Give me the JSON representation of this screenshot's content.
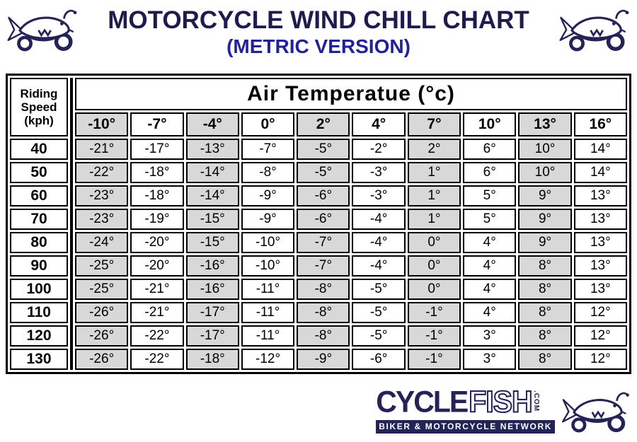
{
  "header": {
    "title": "MOTORCYCLE WIND CHILL CHART",
    "subtitle": "(METRIC VERSION)"
  },
  "table": {
    "corner_label": "Riding\nSpeed\n(kph)",
    "air_header": "Air Temperatue (°c)",
    "col_headers": [
      "-10°",
      "-7°",
      "-4°",
      "0°",
      "2°",
      "4°",
      "7°",
      "10°",
      "13°",
      "16°"
    ],
    "rows": [
      {
        "speed": "40",
        "values": [
          "-21°",
          "-17°",
          "-13°",
          "-7°",
          "-5°",
          "-2°",
          "2°",
          "6°",
          "10°",
          "14°"
        ]
      },
      {
        "speed": "50",
        "values": [
          "-22°",
          "-18°",
          "-14°",
          "-8°",
          "-5°",
          "-3°",
          "1°",
          "6°",
          "10°",
          "14°"
        ]
      },
      {
        "speed": "60",
        "values": [
          "-23°",
          "-18°",
          "-14°",
          "-9°",
          "-6°",
          "-3°",
          "1°",
          "5°",
          "9°",
          "13°"
        ]
      },
      {
        "speed": "70",
        "values": [
          "-23°",
          "-19°",
          "-15°",
          "-9°",
          "-6°",
          "-4°",
          "1°",
          "5°",
          "9°",
          "13°"
        ]
      },
      {
        "speed": "80",
        "values": [
          "-24°",
          "-20°",
          "-15°",
          "-10°",
          "-7°",
          "-4°",
          "0°",
          "4°",
          "9°",
          "13°"
        ]
      },
      {
        "speed": "90",
        "values": [
          "-25°",
          "-20°",
          "-16°",
          "-10°",
          "-7°",
          "-4°",
          "0°",
          "4°",
          "8°",
          "13°"
        ]
      },
      {
        "speed": "100",
        "values": [
          "-25°",
          "-21°",
          "-16°",
          "-11°",
          "-8°",
          "-5°",
          "0°",
          "4°",
          "8°",
          "13°"
        ]
      },
      {
        "speed": "110",
        "values": [
          "-26°",
          "-21°",
          "-17°",
          "-11°",
          "-8°",
          "-5°",
          "-1°",
          "4°",
          "8°",
          "12°"
        ]
      },
      {
        "speed": "120",
        "values": [
          "-26°",
          "-22°",
          "-17°",
          "-11°",
          "-8°",
          "-5°",
          "-1°",
          "3°",
          "8°",
          "12°"
        ]
      },
      {
        "speed": "130",
        "values": [
          "-26°",
          "-22°",
          "-18°",
          "-12°",
          "-9°",
          "-6°",
          "-1°",
          "3°",
          "8°",
          "12°"
        ]
      }
    ]
  },
  "footer_logo": {
    "brand_primary": "CYCLE",
    "brand_secondary": "FISH",
    "brand_tld": ".COM",
    "tagline": "BIKER & MOTORCYCLE NETWORK"
  },
  "icons": {
    "header_left": "motorcycle-fish-icon",
    "header_right": "motorcycle-fish-icon",
    "footer": "motorcycle-fish-icon"
  },
  "colors": {
    "title_navy": "#1c1c4e",
    "subtitle_blue": "#21219a",
    "cell_gray": "#d8d8d8",
    "border_black": "#000000",
    "logo_navy": "#232358",
    "data_text": "#373737"
  },
  "chart_data": {
    "type": "table",
    "title": "MOTORCYCLE WIND CHILL CHART",
    "subtitle": "(METRIC VERSION)",
    "row_axis_label": "Riding Speed (kph)",
    "col_axis_label": "Air Temperatue (°c)",
    "columns_air_temp_c": [
      -10,
      -7,
      -4,
      0,
      2,
      4,
      7,
      10,
      13,
      16
    ],
    "rows_speed_kph": [
      40,
      50,
      60,
      70,
      80,
      90,
      100,
      110,
      120,
      130
    ],
    "wind_chill_c": [
      [
        -21,
        -17,
        -13,
        -7,
        -5,
        -2,
        2,
        6,
        10,
        14
      ],
      [
        -22,
        -18,
        -14,
        -8,
        -5,
        -3,
        1,
        6,
        10,
        14
      ],
      [
        -23,
        -18,
        -14,
        -9,
        -6,
        -3,
        1,
        5,
        9,
        13
      ],
      [
        -23,
        -19,
        -15,
        -9,
        -6,
        -4,
        1,
        5,
        9,
        13
      ],
      [
        -24,
        -20,
        -15,
        -10,
        -7,
        -4,
        0,
        4,
        9,
        13
      ],
      [
        -25,
        -20,
        -16,
        -10,
        -7,
        -4,
        0,
        4,
        8,
        13
      ],
      [
        -25,
        -21,
        -16,
        -11,
        -8,
        -5,
        0,
        4,
        8,
        13
      ],
      [
        -26,
        -21,
        -17,
        -11,
        -8,
        -5,
        -1,
        4,
        8,
        12
      ],
      [
        -26,
        -22,
        -17,
        -11,
        -8,
        -5,
        -1,
        3,
        8,
        12
      ],
      [
        -26,
        -22,
        -18,
        -12,
        -9,
        -6,
        -1,
        3,
        8,
        12
      ]
    ],
    "layout": {
      "column_shading": "alternating gray/white starting gray at -10°",
      "grid": "black 2px cell borders with white spacing, 3px outer border"
    }
  }
}
